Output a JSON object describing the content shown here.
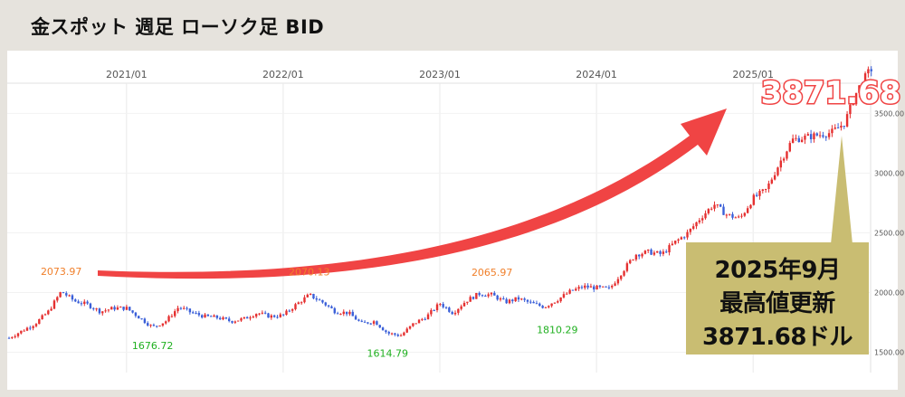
{
  "header": {
    "title": "金スポット 週足 ローソク足 BID"
  },
  "colors": {
    "up": "#e53030",
    "down": "#3a5fd8",
    "arrow": "#f04444",
    "callout_bg": "#c9bd72",
    "high_label": "#f07f2a",
    "low_label": "#20b020",
    "price_outline": "#f04444"
  },
  "chart_data": {
    "type": "candlestick",
    "title": "金スポット 週足 ローソク足 BID",
    "x_ticks": [
      "2021/01",
      "2022/01",
      "2023/01",
      "2024/01",
      "2025/01"
    ],
    "y_ticks": [
      "1500.00",
      "2000.00",
      "2500.00",
      "3000.00",
      "3500.00"
    ],
    "ylim": [
      1330,
      3950
    ],
    "xlim": [
      "2020-04",
      "2025-10"
    ],
    "grid": true,
    "annotations": [
      {
        "label": "2073.97",
        "date": "2020-08",
        "value": 2073.97,
        "kind": "high"
      },
      {
        "label": "1676.72",
        "date": "2021-03",
        "value": 1676.72,
        "kind": "low"
      },
      {
        "label": "2070.13",
        "date": "2022-03",
        "value": 2070.13,
        "kind": "high"
      },
      {
        "label": "1614.79",
        "date": "2022-09",
        "value": 1614.79,
        "kind": "low"
      },
      {
        "label": "2065.97",
        "date": "2023-05",
        "value": 2065.97,
        "kind": "high"
      },
      {
        "label": "1810.29",
        "date": "2023-10",
        "value": 1810.29,
        "kind": "low"
      }
    ],
    "latest_price": "3871.68",
    "path_points": [
      [
        "2020-04",
        1620
      ],
      [
        "2020-06",
        1740
      ],
      [
        "2020-07",
        1840
      ],
      [
        "2020-08",
        2010
      ],
      [
        "2020-09",
        1930
      ],
      [
        "2020-10",
        1900
      ],
      [
        "2020-11",
        1840
      ],
      [
        "2020-12",
        1870
      ],
      [
        "2021-01",
        1870
      ],
      [
        "2021-02",
        1790
      ],
      [
        "2021-03",
        1710
      ],
      [
        "2021-04",
        1760
      ],
      [
        "2021-05",
        1880
      ],
      [
        "2021-06",
        1830
      ],
      [
        "2021-07",
        1800
      ],
      [
        "2021-08",
        1790
      ],
      [
        "2021-09",
        1760
      ],
      [
        "2021-10",
        1780
      ],
      [
        "2021-11",
        1830
      ],
      [
        "2021-12",
        1800
      ],
      [
        "2022-01",
        1810
      ],
      [
        "2022-02",
        1900
      ],
      [
        "2022-03",
        1980
      ],
      [
        "2022-04",
        1920
      ],
      [
        "2022-05",
        1840
      ],
      [
        "2022-06",
        1830
      ],
      [
        "2022-07",
        1740
      ],
      [
        "2022-08",
        1760
      ],
      [
        "2022-09",
        1660
      ],
      [
        "2022-10",
        1640
      ],
      [
        "2022-11",
        1740
      ],
      [
        "2022-12",
        1800
      ],
      [
        "2023-01",
        1910
      ],
      [
        "2023-02",
        1830
      ],
      [
        "2023-03",
        1930
      ],
      [
        "2023-04",
        1990
      ],
      [
        "2023-05",
        1980
      ],
      [
        "2023-06",
        1920
      ],
      [
        "2023-07",
        1950
      ],
      [
        "2023-08",
        1910
      ],
      [
        "2023-09",
        1880
      ],
      [
        "2023-10",
        1940
      ],
      [
        "2023-11",
        2010
      ],
      [
        "2023-12",
        2050
      ],
      [
        "2024-01",
        2040
      ],
      [
        "2024-02",
        2030
      ],
      [
        "2024-03",
        2180
      ],
      [
        "2024-04",
        2320
      ],
      [
        "2024-05",
        2340
      ],
      [
        "2024-06",
        2320
      ],
      [
        "2024-07",
        2420
      ],
      [
        "2024-08",
        2500
      ],
      [
        "2024-09",
        2630
      ],
      [
        "2024-10",
        2740
      ],
      [
        "2024-11",
        2650
      ],
      [
        "2024-12",
        2620
      ],
      [
        "2025-01",
        2790
      ],
      [
        "2025-02",
        2860
      ],
      [
        "2025-03",
        3080
      ],
      [
        "2025-04",
        3280
      ],
      [
        "2025-05",
        3300
      ],
      [
        "2025-06",
        3320
      ],
      [
        "2025-07",
        3340
      ],
      [
        "2025-08",
        3420
      ],
      [
        "2025-09",
        3700
      ],
      [
        "2025-10",
        3871.68
      ]
    ]
  },
  "callout": {
    "line1": "2025年9月",
    "line2": "最高値更新",
    "line3": "3871.68ドル"
  }
}
